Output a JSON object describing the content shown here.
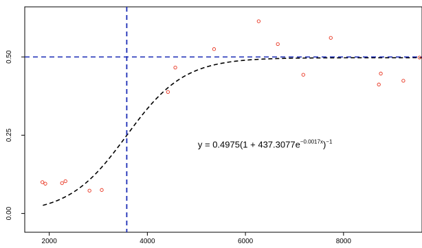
{
  "chart_data": {
    "type": "scatter",
    "title": "",
    "xlabel": "",
    "ylabel": "",
    "xlim": [
      1500,
      9600
    ],
    "ylim": [
      -0.06,
      0.66
    ],
    "x_ticks": [
      2000,
      4000,
      6000,
      8000
    ],
    "x_tick_labels": [
      "2000",
      "4000",
      "6000",
      "8000"
    ],
    "y_ticks": [
      0.0,
      0.25,
      0.5
    ],
    "y_tick_labels": [
      "0.00",
      "0.25",
      "0.50"
    ],
    "grid": false,
    "series": [
      {
        "marker": "open-circle",
        "color": "#e8301c",
        "x": [
          1860,
          1920,
          2260,
          2330,
          2820,
          3070,
          4420,
          4570,
          5360,
          6270,
          6660,
          7180,
          7740,
          8720,
          8760,
          9220,
          9550
        ],
        "y": [
          0.1,
          0.095,
          0.097,
          0.103,
          0.073,
          0.075,
          0.388,
          0.466,
          0.525,
          0.614,
          0.541,
          0.443,
          0.561,
          0.412,
          0.447,
          0.424,
          0.498
        ]
      }
    ],
    "fitted_curve": {
      "style": "dashed",
      "color": "#000000",
      "a": 0.4975,
      "b": 437.3077,
      "k": 0.0017,
      "x_range": [
        1870,
        9600
      ]
    },
    "reference_lines": [
      {
        "orientation": "horizontal",
        "value": 0.5,
        "style": "dashed",
        "color": "#1a2bb5"
      },
      {
        "orientation": "vertical",
        "value": 3580,
        "style": "dashed",
        "color": "#1a2bb5"
      }
    ],
    "annotation": {
      "lhs": "y = 0.4975(1 + 437.3077e",
      "exponent": "−0.0017x",
      "rhs": ")",
      "rhs_exponent": "−1",
      "x": 6400,
      "y": 0.21
    }
  }
}
